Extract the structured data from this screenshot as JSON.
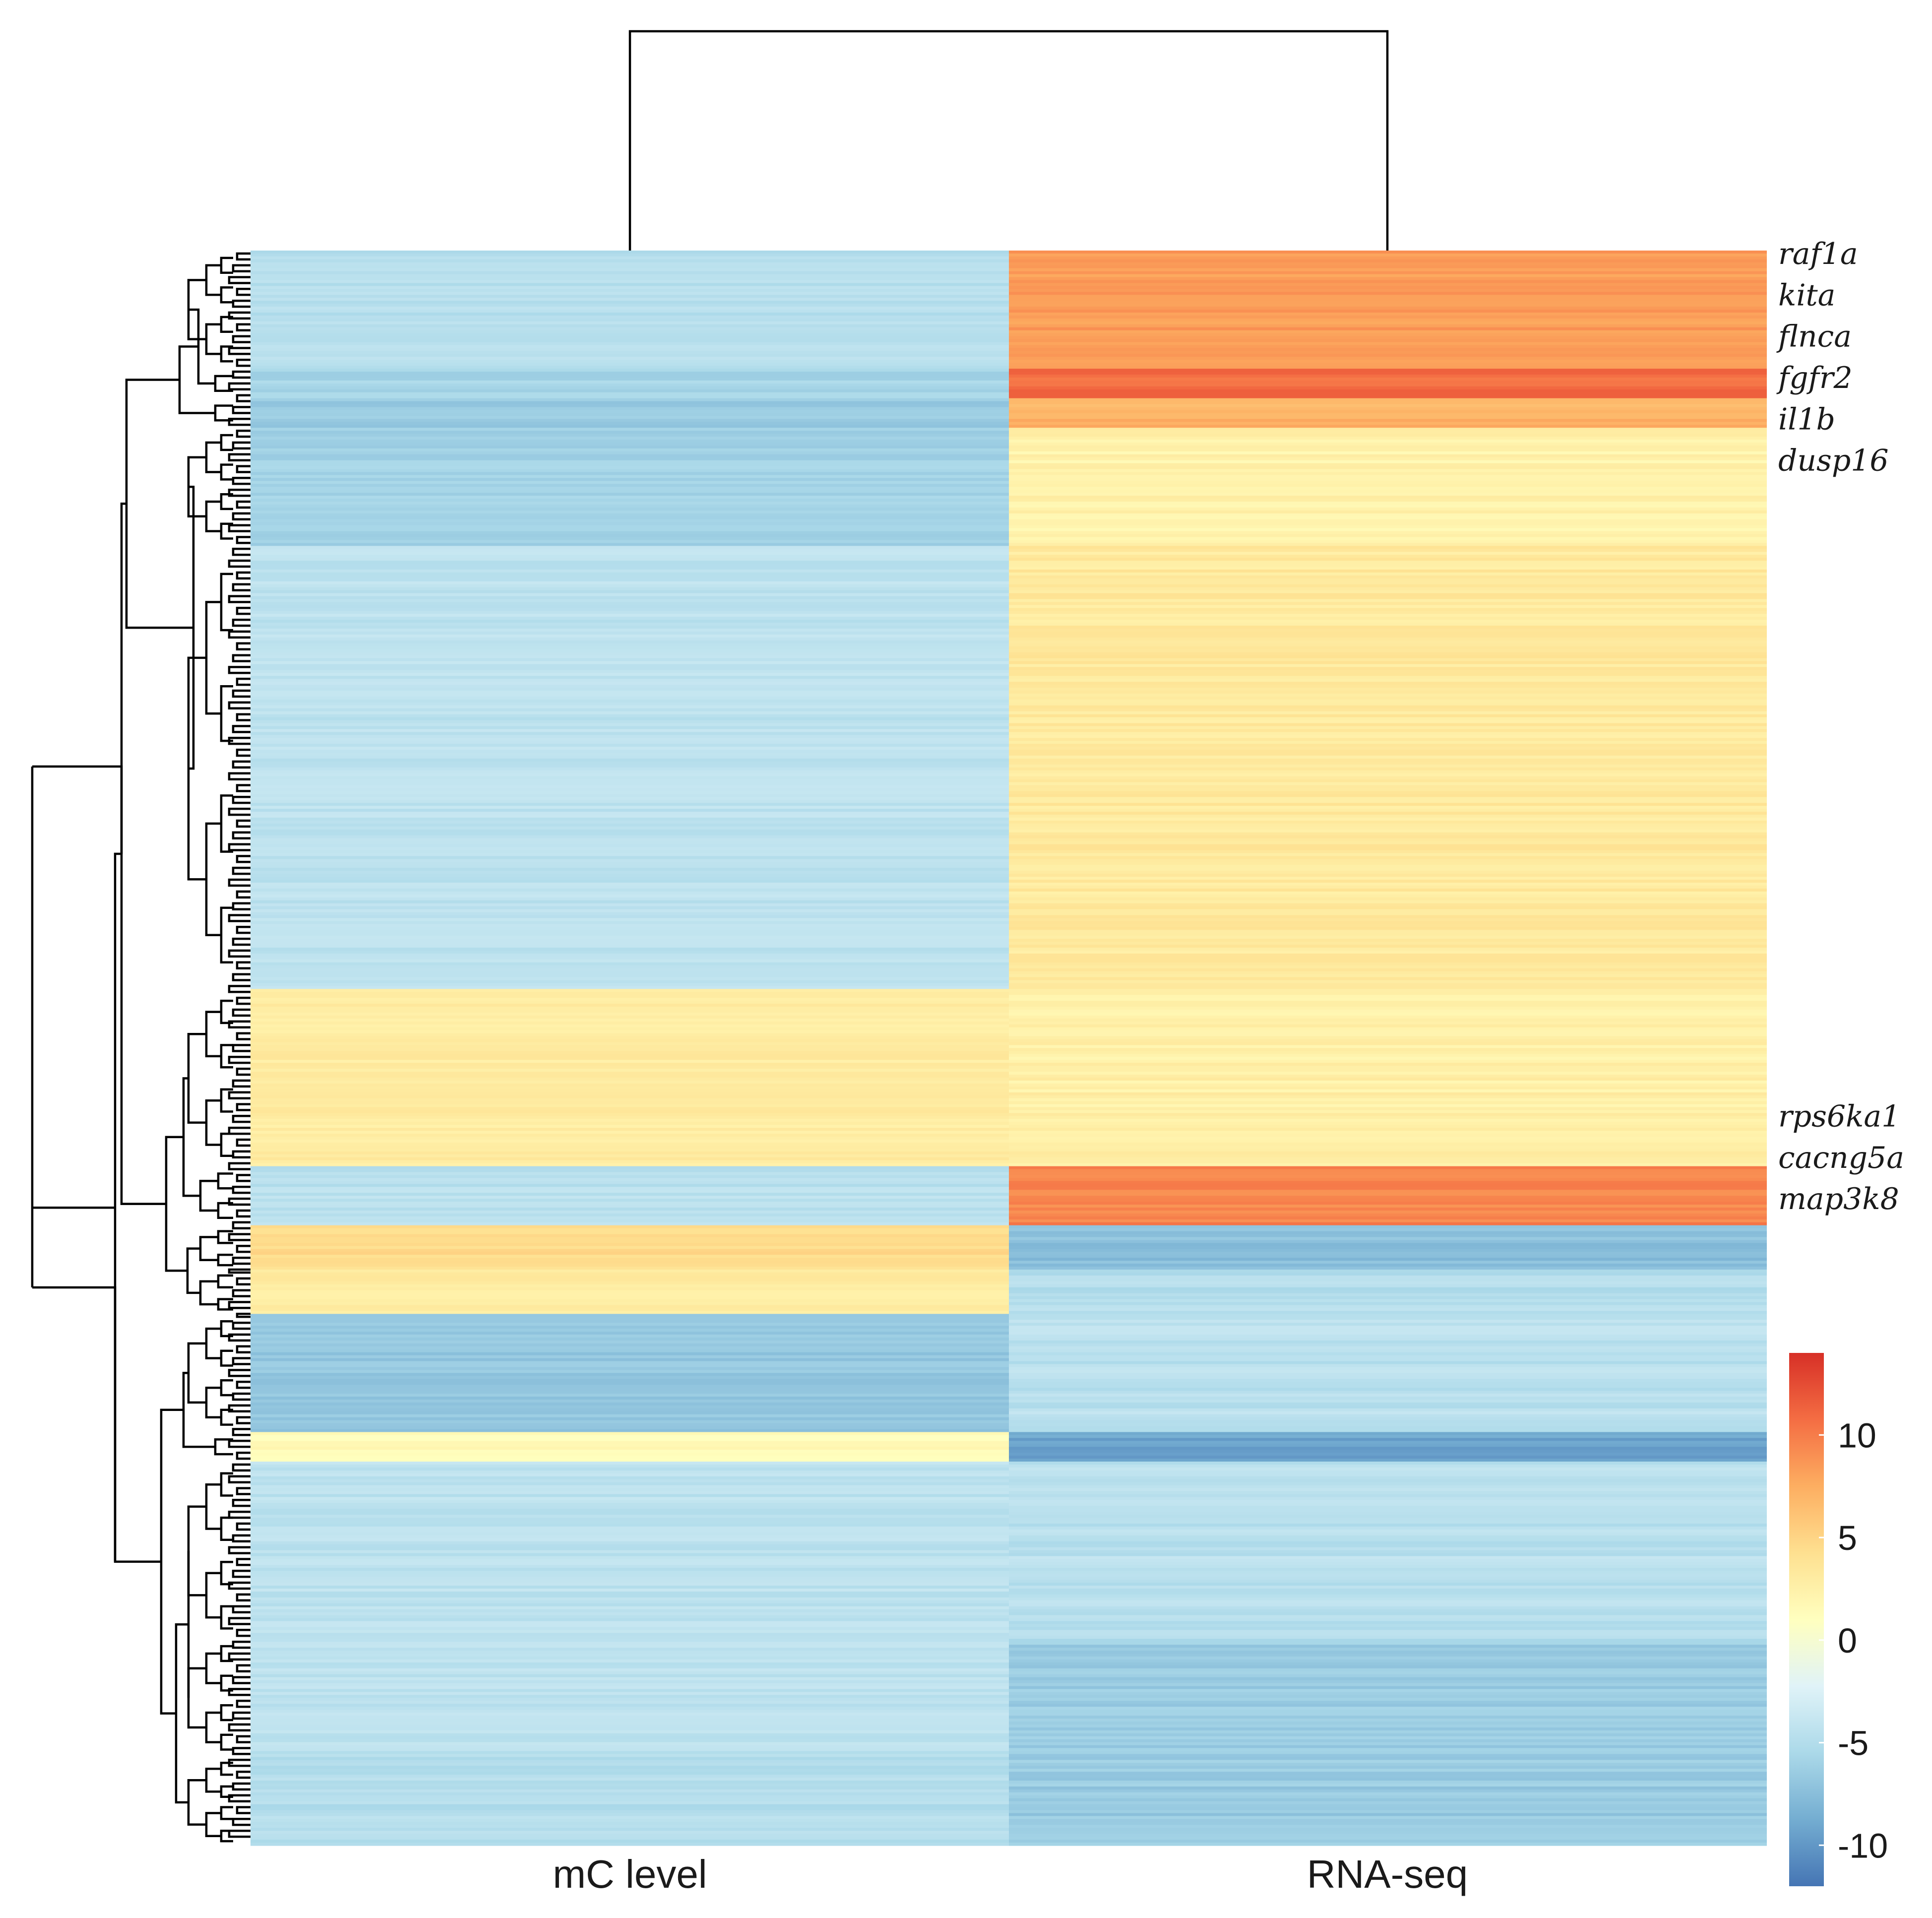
{
  "chart_data": {
    "type": "heatmap",
    "title": "",
    "columns": [
      "mC level",
      "RNA-seq"
    ],
    "highlighted_genes": [
      "raf1a",
      "kita",
      "flnca",
      "fgfr2",
      "il1b",
      "dusp16",
      "rps6ka1",
      "cacng5a",
      "map3k8"
    ],
    "highlighted_gene_rows": [
      0.5,
      14.5,
      28.5,
      42.5,
      56.5,
      70.5,
      292.5,
      306.5,
      320.5
    ],
    "n_rows": 540,
    "colorbar": {
      "min": -12,
      "max": 14,
      "ticks": [
        -10,
        -5,
        0,
        5,
        10
      ]
    },
    "colormap": [
      "#4575b4",
      "#74add1",
      "#abd9e9",
      "#e0f3f8",
      "#ffffbf",
      "#fee090",
      "#fdae61",
      "#f46d43",
      "#d73027"
    ],
    "row_dendrogram": true,
    "column_dendrogram": true,
    "row_blocks": [
      {
        "rows": [
          0,
          40
        ],
        "mC": -4.8,
        "RNA": 8.4
      },
      {
        "rows": [
          40,
          50
        ],
        "mC": -5.8,
        "RNA": 10.8
      },
      {
        "rows": [
          50,
          60
        ],
        "mC": -6.5,
        "RNA": 7.2
      },
      {
        "rows": [
          60,
          100
        ],
        "mC": -6.0,
        "RNA": 2.3
      },
      {
        "rows": [
          100,
          250
        ],
        "mC": -4.4,
        "RNA": 3.3
      },
      {
        "rows": [
          250,
          310
        ],
        "mC": 3.0,
        "RNA": 2.6
      },
      {
        "rows": [
          310,
          330
        ],
        "mC": -4.6,
        "RNA": 9.6
      },
      {
        "rows": [
          330,
          345
        ],
        "mC": 4.5,
        "RNA": -7.4
      },
      {
        "rows": [
          345,
          360
        ],
        "mC": 3.0,
        "RNA": -4.8
      },
      {
        "rows": [
          360,
          400
        ],
        "mC": -6.8,
        "RNA": -4.6
      },
      {
        "rows": [
          400,
          410
        ],
        "mC": 1.5,
        "RNA": -9.2
      },
      {
        "rows": [
          410,
          470
        ],
        "mC": -4.4,
        "RNA": -4.6
      },
      {
        "rows": [
          470,
          510
        ],
        "mC": -4.4,
        "RNA": -6.4
      },
      {
        "rows": [
          510,
          540
        ],
        "mC": -4.9,
        "RNA": -6.6
      }
    ]
  }
}
